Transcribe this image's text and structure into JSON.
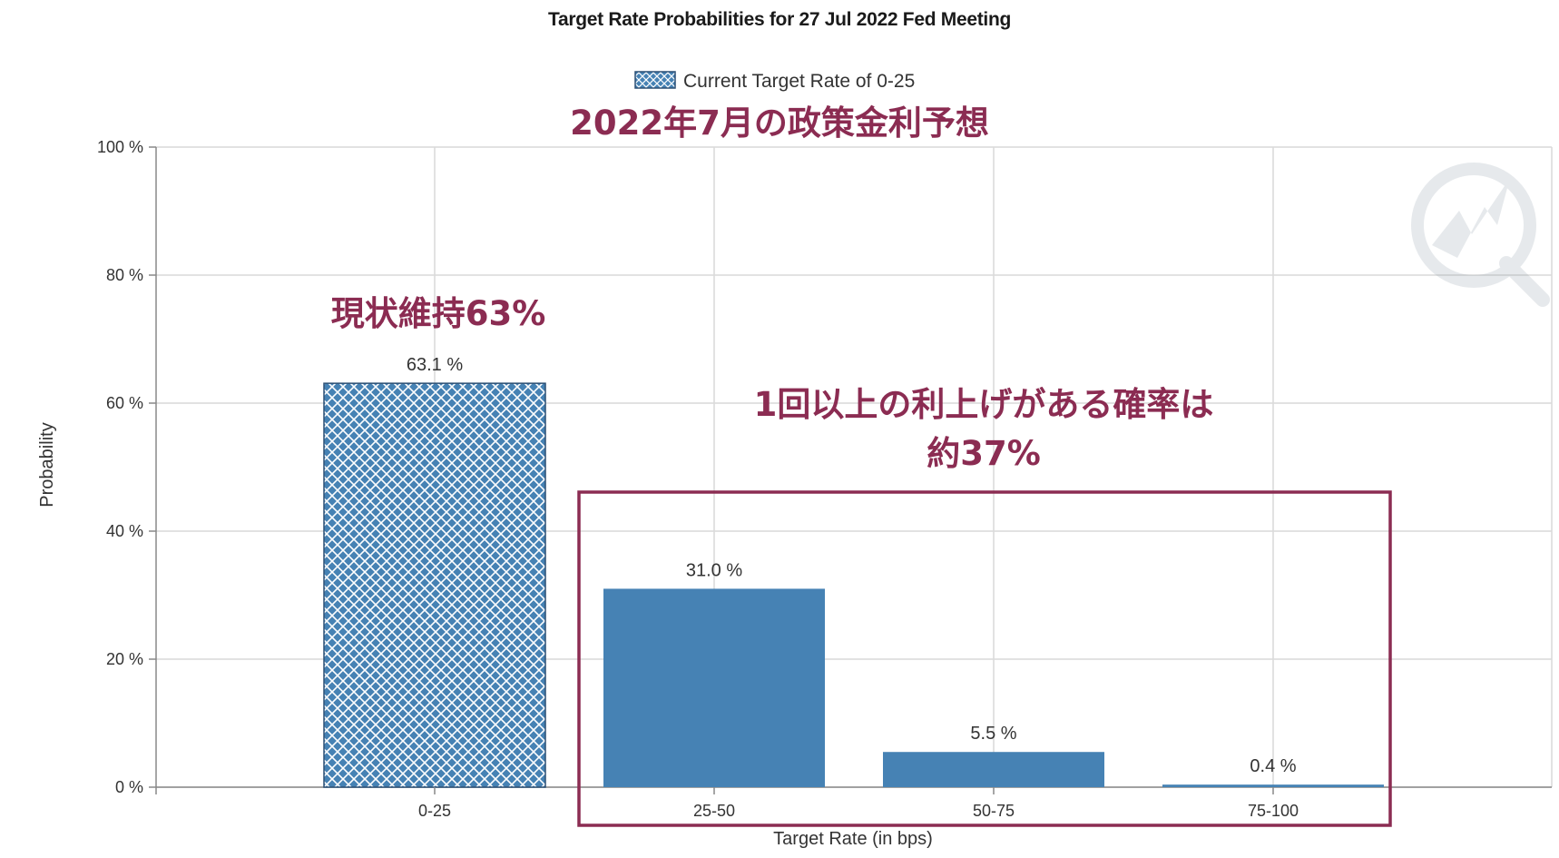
{
  "chart_data": {
    "type": "bar",
    "title": "Target Rate Probabilities for 27 Jul 2022 Fed Meeting",
    "legend": "Current Target Rate of 0-25",
    "xlabel": "Target Rate (in bps)",
    "ylabel": "Probability",
    "categories": [
      "0-25",
      "25-50",
      "50-75",
      "75-100"
    ],
    "values": [
      63.1,
      31.0,
      5.5,
      0.4
    ],
    "value_labels": [
      "63.1 %",
      "31.0 %",
      "5.5 %",
      "0.4 %"
    ],
    "highlighted_category": "0-25",
    "ylim": [
      0,
      100
    ],
    "yticks": [
      0,
      20,
      40,
      60,
      80,
      100
    ],
    "ytick_labels": [
      "0 %",
      "20 %",
      "40 %",
      "60 %",
      "80 %",
      "100 %"
    ],
    "grid": true,
    "legend_position": "top-center"
  },
  "annotations": {
    "headline": "2022年7月の政策金利予想",
    "status_quo": "現状維持63%",
    "hike_line1": "1回以上の利上げがある確率は",
    "hike_line2": "約37%"
  },
  "colors": {
    "bar": "#4682b4",
    "hatch_line": "#ffffff",
    "grid": "#d9d9d9",
    "annotation": "#8b2c52",
    "highlight_box": "#8b2c52"
  }
}
